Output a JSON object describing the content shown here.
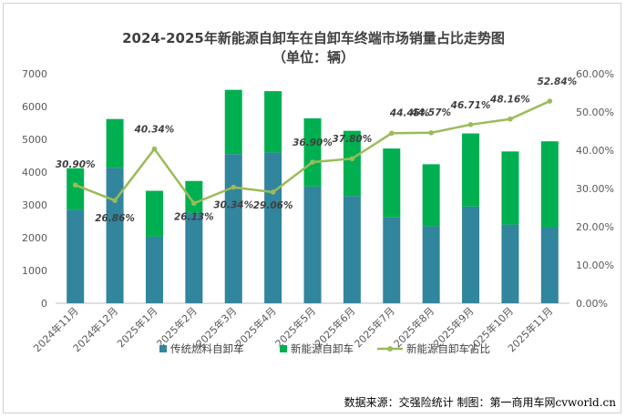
{
  "chart_data": {
    "type": "bar",
    "stacked": true,
    "title": "2024-2025年新能源自卸车在自卸车终端市场销量占比走势图",
    "subtitle": "（单位：辆）",
    "categories": [
      "2024年11月",
      "2024年12月",
      "2025年1月",
      "2025年2月",
      "2025年3月",
      "2025年4月",
      "2025年5月",
      "2025年6月",
      "2025年7月",
      "2025年8月",
      "2025年9月",
      "2025年10月",
      "2025年11月"
    ],
    "series": [
      {
        "name": "传统燃料自卸车",
        "color": "#31859c",
        "axis": "left",
        "values": [
          2850,
          4130,
          2030,
          2760,
          4550,
          4600,
          3560,
          3270,
          2620,
          2350,
          2950,
          2400,
          2320
        ]
      },
      {
        "name": "新能源自卸车",
        "color": "#00b050",
        "axis": "left",
        "values": [
          1270,
          1490,
          1400,
          970,
          1960,
          1870,
          2080,
          1990,
          2100,
          1890,
          2230,
          2230,
          2620
        ]
      },
      {
        "name": "新能源自卸车占比",
        "color": "#9bbb59",
        "type": "line",
        "axis": "right",
        "values": [
          30.9,
          26.86,
          40.34,
          26.13,
          30.34,
          29.06,
          36.9,
          37.8,
          44.45,
          44.57,
          46.71,
          48.16,
          52.84
        ],
        "labels": [
          "30.90%",
          "26.86%",
          "40.34%",
          "26.13%",
          "30.34%",
          "29.06%",
          "36.90%",
          "37.80%",
          "44.45%",
          "44.57%",
          "46.71%",
          "48.16%",
          "52.84%"
        ]
      }
    ],
    "y_left": {
      "min": 0,
      "max": 7000,
      "step": 1000,
      "ticks": [
        "0",
        "1000",
        "2000",
        "3000",
        "4000",
        "5000",
        "6000",
        "7000"
      ]
    },
    "y_right": {
      "min": 0,
      "max": 60,
      "step": 10,
      "ticks": [
        "0.00%",
        "10.00%",
        "20.00%",
        "30.00%",
        "40.00%",
        "50.00%",
        "60.00%"
      ]
    },
    "grid": false,
    "legend_position": "bottom"
  },
  "source": "数据来源：交强险统计   制图：第一商用车网cvworld.cn"
}
